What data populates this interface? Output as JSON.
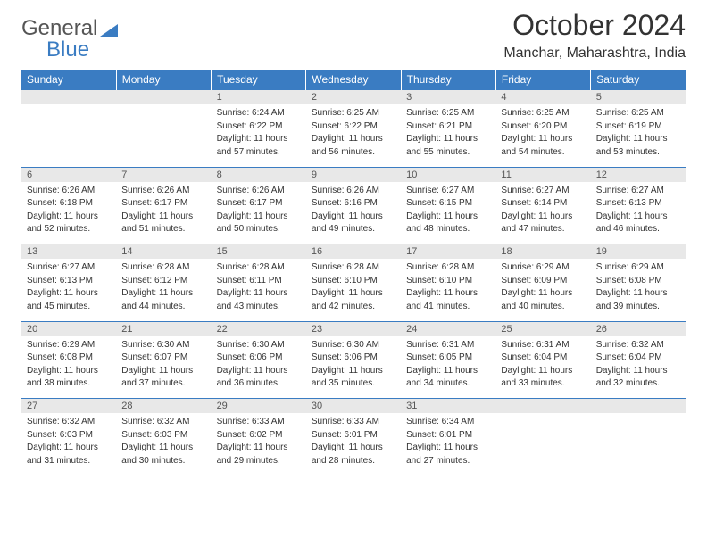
{
  "logo": {
    "text1": "General",
    "text2": "Blue"
  },
  "title": "October 2024",
  "subtitle": "Manchar, Maharashtra, India",
  "colors": {
    "header_bg": "#3a7cc2",
    "header_text": "#ffffff",
    "daynum_bg": "#e8e8e8",
    "row_border": "#3a7cc2",
    "body_bg": "#ffffff",
    "text": "#333333"
  },
  "fonts": {
    "title_pt": 32,
    "subtitle_pt": 16,
    "dayhead_pt": 12,
    "daynum_pt": 11,
    "cell_pt": 10
  },
  "days_of_week": [
    "Sunday",
    "Monday",
    "Tuesday",
    "Wednesday",
    "Thursday",
    "Friday",
    "Saturday"
  ],
  "weeks": [
    [
      null,
      null,
      {
        "n": "1",
        "sr": "6:24 AM",
        "ss": "6:22 PM",
        "dl": "11 hours and 57 minutes."
      },
      {
        "n": "2",
        "sr": "6:25 AM",
        "ss": "6:22 PM",
        "dl": "11 hours and 56 minutes."
      },
      {
        "n": "3",
        "sr": "6:25 AM",
        "ss": "6:21 PM",
        "dl": "11 hours and 55 minutes."
      },
      {
        "n": "4",
        "sr": "6:25 AM",
        "ss": "6:20 PM",
        "dl": "11 hours and 54 minutes."
      },
      {
        "n": "5",
        "sr": "6:25 AM",
        "ss": "6:19 PM",
        "dl": "11 hours and 53 minutes."
      }
    ],
    [
      {
        "n": "6",
        "sr": "6:26 AM",
        "ss": "6:18 PM",
        "dl": "11 hours and 52 minutes."
      },
      {
        "n": "7",
        "sr": "6:26 AM",
        "ss": "6:17 PM",
        "dl": "11 hours and 51 minutes."
      },
      {
        "n": "8",
        "sr": "6:26 AM",
        "ss": "6:17 PM",
        "dl": "11 hours and 50 minutes."
      },
      {
        "n": "9",
        "sr": "6:26 AM",
        "ss": "6:16 PM",
        "dl": "11 hours and 49 minutes."
      },
      {
        "n": "10",
        "sr": "6:27 AM",
        "ss": "6:15 PM",
        "dl": "11 hours and 48 minutes."
      },
      {
        "n": "11",
        "sr": "6:27 AM",
        "ss": "6:14 PM",
        "dl": "11 hours and 47 minutes."
      },
      {
        "n": "12",
        "sr": "6:27 AM",
        "ss": "6:13 PM",
        "dl": "11 hours and 46 minutes."
      }
    ],
    [
      {
        "n": "13",
        "sr": "6:27 AM",
        "ss": "6:13 PM",
        "dl": "11 hours and 45 minutes."
      },
      {
        "n": "14",
        "sr": "6:28 AM",
        "ss": "6:12 PM",
        "dl": "11 hours and 44 minutes."
      },
      {
        "n": "15",
        "sr": "6:28 AM",
        "ss": "6:11 PM",
        "dl": "11 hours and 43 minutes."
      },
      {
        "n": "16",
        "sr": "6:28 AM",
        "ss": "6:10 PM",
        "dl": "11 hours and 42 minutes."
      },
      {
        "n": "17",
        "sr": "6:28 AM",
        "ss": "6:10 PM",
        "dl": "11 hours and 41 minutes."
      },
      {
        "n": "18",
        "sr": "6:29 AM",
        "ss": "6:09 PM",
        "dl": "11 hours and 40 minutes."
      },
      {
        "n": "19",
        "sr": "6:29 AM",
        "ss": "6:08 PM",
        "dl": "11 hours and 39 minutes."
      }
    ],
    [
      {
        "n": "20",
        "sr": "6:29 AM",
        "ss": "6:08 PM",
        "dl": "11 hours and 38 minutes."
      },
      {
        "n": "21",
        "sr": "6:30 AM",
        "ss": "6:07 PM",
        "dl": "11 hours and 37 minutes."
      },
      {
        "n": "22",
        "sr": "6:30 AM",
        "ss": "6:06 PM",
        "dl": "11 hours and 36 minutes."
      },
      {
        "n": "23",
        "sr": "6:30 AM",
        "ss": "6:06 PM",
        "dl": "11 hours and 35 minutes."
      },
      {
        "n": "24",
        "sr": "6:31 AM",
        "ss": "6:05 PM",
        "dl": "11 hours and 34 minutes."
      },
      {
        "n": "25",
        "sr": "6:31 AM",
        "ss": "6:04 PM",
        "dl": "11 hours and 33 minutes."
      },
      {
        "n": "26",
        "sr": "6:32 AM",
        "ss": "6:04 PM",
        "dl": "11 hours and 32 minutes."
      }
    ],
    [
      {
        "n": "27",
        "sr": "6:32 AM",
        "ss": "6:03 PM",
        "dl": "11 hours and 31 minutes."
      },
      {
        "n": "28",
        "sr": "6:32 AM",
        "ss": "6:03 PM",
        "dl": "11 hours and 30 minutes."
      },
      {
        "n": "29",
        "sr": "6:33 AM",
        "ss": "6:02 PM",
        "dl": "11 hours and 29 minutes."
      },
      {
        "n": "30",
        "sr": "6:33 AM",
        "ss": "6:01 PM",
        "dl": "11 hours and 28 minutes."
      },
      {
        "n": "31",
        "sr": "6:34 AM",
        "ss": "6:01 PM",
        "dl": "11 hours and 27 minutes."
      },
      null,
      null
    ]
  ],
  "labels": {
    "sunrise": "Sunrise:",
    "sunset": "Sunset:",
    "daylight": "Daylight:"
  }
}
